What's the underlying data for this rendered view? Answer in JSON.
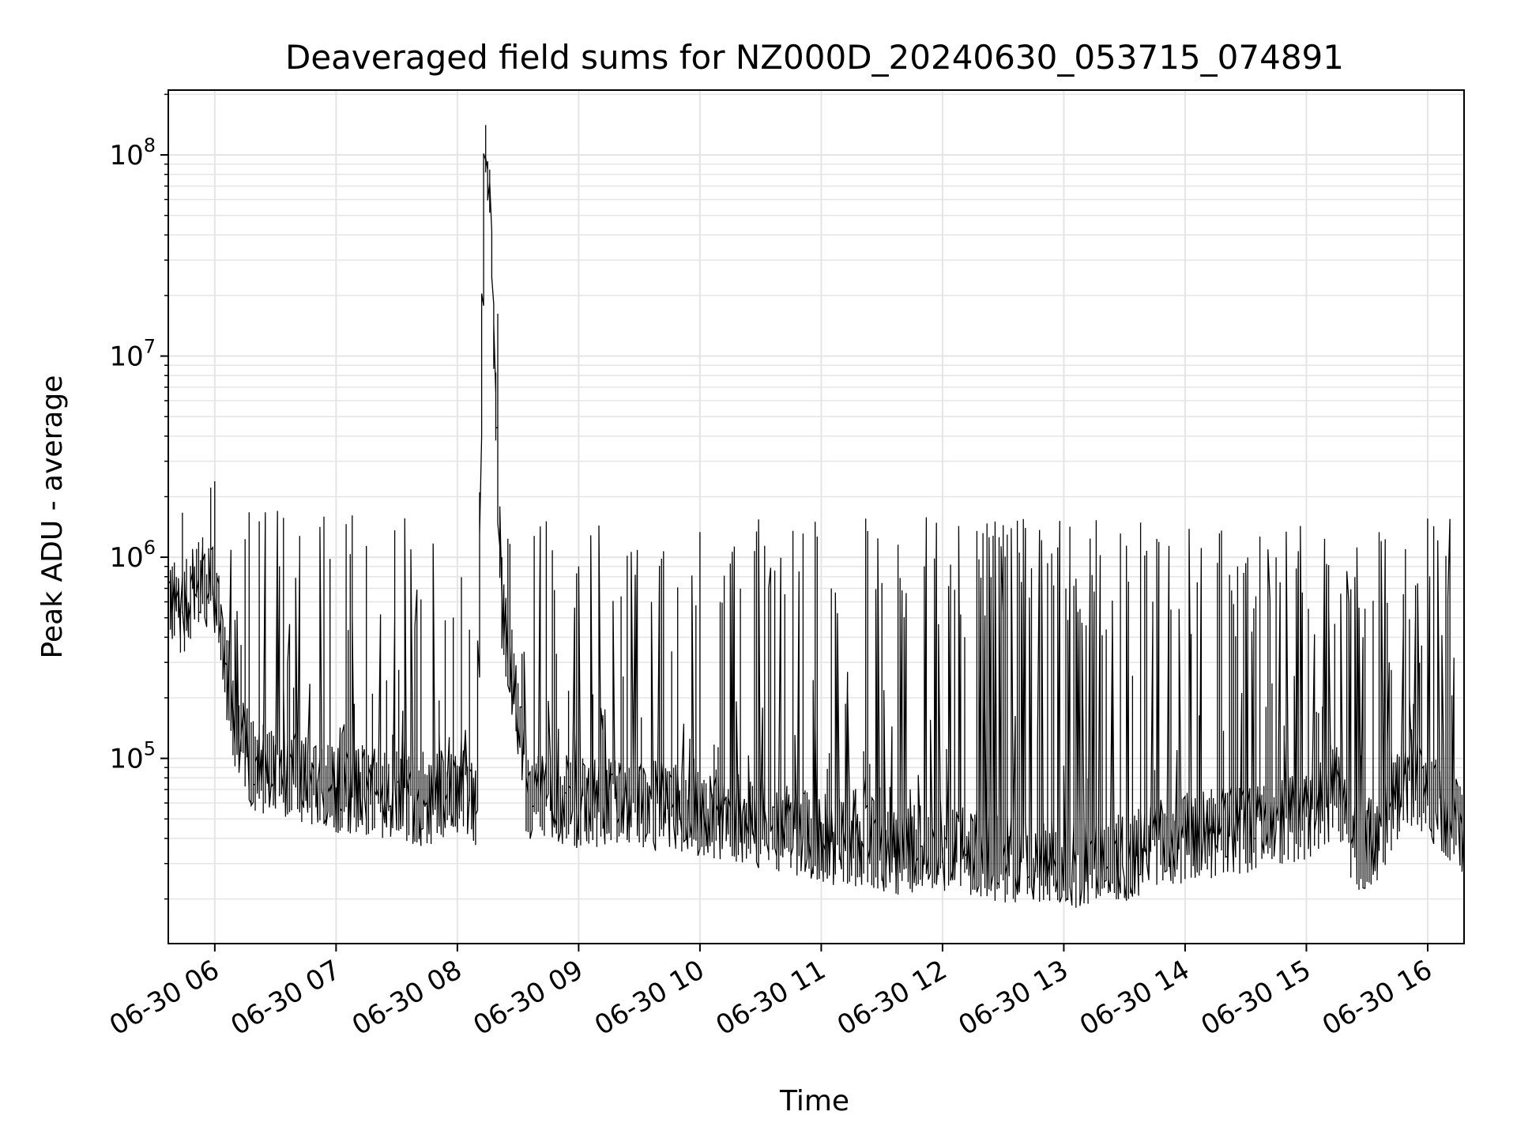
{
  "chart_data": {
    "type": "line",
    "title": "Deaveraged field sums for NZ000D_20240630_053715_074891",
    "xlabel": "Time",
    "ylabel": "Peak ADU - average",
    "yscale": "log",
    "ylim": [
      12000,
      210000000
    ],
    "xlim": [
      "2024-06-30 05:37",
      "2024-06-30 16:18"
    ],
    "grid": true,
    "line_color": "#000000",
    "grid_color": "#e5e5e5",
    "x_ticks": [
      {
        "value": "2024-06-30 06:00",
        "label": "06-30 06"
      },
      {
        "value": "2024-06-30 07:00",
        "label": "06-30 07"
      },
      {
        "value": "2024-06-30 08:00",
        "label": "06-30 08"
      },
      {
        "value": "2024-06-30 09:00",
        "label": "06-30 09"
      },
      {
        "value": "2024-06-30 10:00",
        "label": "06-30 10"
      },
      {
        "value": "2024-06-30 11:00",
        "label": "06-30 11"
      },
      {
        "value": "2024-06-30 12:00",
        "label": "06-30 12"
      },
      {
        "value": "2024-06-30 13:00",
        "label": "06-30 13"
      },
      {
        "value": "2024-06-30 14:00",
        "label": "06-30 14"
      },
      {
        "value": "2024-06-30 15:00",
        "label": "06-30 15"
      },
      {
        "value": "2024-06-30 16:00",
        "label": "06-30 16"
      }
    ],
    "y_ticks": [
      {
        "value": 100000,
        "base": "10",
        "exp": "5"
      },
      {
        "value": 1000000,
        "base": "10",
        "exp": "6"
      },
      {
        "value": 10000000,
        "base": "10",
        "exp": "7"
      },
      {
        "value": 100000000,
        "base": "10",
        "exp": "8"
      }
    ],
    "series": [
      {
        "x": [
          "2024-06-30 05:37",
          "2024-06-30 05:45",
          "2024-06-30 05:52",
          "2024-06-30 05:58",
          "2024-06-30 06:02",
          "2024-06-30 06:06",
          "2024-06-30 06:10",
          "2024-06-30 06:20",
          "2024-06-30 06:35",
          "2024-06-30 06:50",
          "2024-06-30 07:00",
          "2024-06-30 07:15",
          "2024-06-30 07:30",
          "2024-06-30 07:45",
          "2024-06-30 07:58",
          "2024-06-30 08:07",
          "2024-06-30 08:10",
          "2024-06-30 08:12",
          "2024-06-30 08:14",
          "2024-06-30 08:17",
          "2024-06-30 08:20",
          "2024-06-30 08:23",
          "2024-06-30 08:28",
          "2024-06-30 08:35",
          "2024-06-30 08:45",
          "2024-06-30 09:00",
          "2024-06-30 09:20",
          "2024-06-30 09:40",
          "2024-06-30 10:00",
          "2024-06-30 10:20",
          "2024-06-30 10:40",
          "2024-06-30 11:00",
          "2024-06-30 11:20",
          "2024-06-30 11:40",
          "2024-06-30 11:55",
          "2024-06-30 12:10",
          "2024-06-30 12:30",
          "2024-06-30 12:50",
          "2024-06-30 13:10",
          "2024-06-30 13:30",
          "2024-06-30 13:50",
          "2024-06-30 14:10",
          "2024-06-30 14:30",
          "2024-06-30 14:50",
          "2024-06-30 15:05",
          "2024-06-30 15:15",
          "2024-06-30 15:25",
          "2024-06-30 15:35",
          "2024-06-30 15:50",
          "2024-06-30 16:05",
          "2024-06-30 16:18"
        ],
        "values": [
          600000,
          550000,
          800000,
          700000,
          600000,
          300000,
          150000,
          90000,
          85000,
          75000,
          70000,
          70000,
          65000,
          60000,
          70000,
          70000,
          45000,
          3000000,
          120000000,
          50000000,
          4000000,
          500000,
          250000,
          60000,
          65000,
          60000,
          60000,
          58000,
          55000,
          50000,
          45000,
          40000,
          38000,
          35000,
          38000,
          35000,
          32000,
          30000,
          30000,
          32000,
          38000,
          42000,
          45000,
          48000,
          55000,
          70000,
          35000,
          40000,
          80000,
          60000,
          45000
        ]
      }
    ]
  }
}
